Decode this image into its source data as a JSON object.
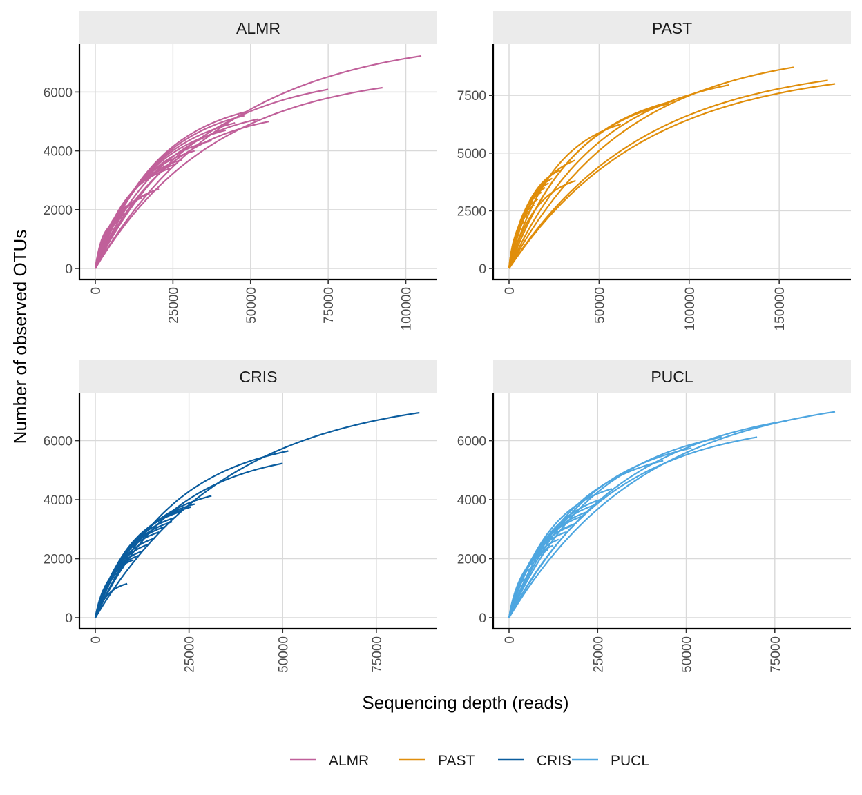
{
  "figure": {
    "xlabel": "Sequencing depth (reads)",
    "ylabel": "Number of observed OTUs"
  },
  "legend": {
    "position": "bottom",
    "entries": [
      {
        "label": "ALMR",
        "color": "#C0609A"
      },
      {
        "label": "PAST",
        "color": "#E08E0B"
      },
      {
        "label": "CRIS",
        "color": "#0A5C9E"
      },
      {
        "label": "PUCL",
        "color": "#4EA6E0"
      }
    ]
  },
  "chart_data": [
    {
      "type": "line",
      "facet": "ALMR",
      "color": "#C0609A",
      "xlim": [
        0,
        105000
      ],
      "ylim": [
        0,
        7300
      ],
      "xticks": [
        0,
        25000,
        50000,
        75000,
        100000
      ],
      "yticks": [
        0,
        2000,
        4000,
        6000
      ],
      "grid": true,
      "series": [
        {
          "depth": 105000,
          "otus": 7230
        },
        {
          "depth": 92500,
          "otus": 6150
        },
        {
          "depth": 75000,
          "otus": 6090
        },
        {
          "depth": 56000,
          "otus": 5000
        },
        {
          "depth": 52500,
          "otus": 5080
        },
        {
          "depth": 49000,
          "otus": 5340
        },
        {
          "depth": 48000,
          "otus": 5200
        },
        {
          "depth": 45000,
          "otus": 4950
        },
        {
          "depth": 42000,
          "otus": 4700
        },
        {
          "depth": 37500,
          "otus": 4350
        },
        {
          "depth": 32000,
          "otus": 4000
        },
        {
          "depth": 28000,
          "otus": 3700
        },
        {
          "depth": 26000,
          "otus": 3550
        },
        {
          "depth": 24000,
          "otus": 3400
        },
        {
          "depth": 20500,
          "otus": 2700
        },
        {
          "depth": 17500,
          "otus": 2550
        },
        {
          "depth": 15000,
          "otus": 2400
        },
        {
          "depth": 12500,
          "otus": 2250
        },
        {
          "depth": 10500,
          "otus": 1900
        },
        {
          "depth": 9000,
          "otus": 1750
        },
        {
          "depth": 7500,
          "otus": 1600
        },
        {
          "depth": 5500,
          "otus": 1500
        },
        {
          "depth": 3500,
          "otus": 1000
        }
      ]
    },
    {
      "type": "line",
      "facet": "PAST",
      "color": "#E08E0B",
      "xlim": [
        0,
        181000
      ],
      "ylim": [
        0,
        9300
      ],
      "xticks": [
        0,
        50000,
        100000,
        150000
      ],
      "yticks": [
        0,
        2500,
        5000,
        7500
      ],
      "grid": true,
      "series": [
        {
          "depth": 158000,
          "otus": 8720
        },
        {
          "depth": 181000,
          "otus": 8000
        },
        {
          "depth": 177000,
          "otus": 8150
        },
        {
          "depth": 122000,
          "otus": 7950
        },
        {
          "depth": 91000,
          "otus": 7250
        },
        {
          "depth": 89000,
          "otus": 7150
        },
        {
          "depth": 62000,
          "otus": 6250
        },
        {
          "depth": 36500,
          "otus": 4680
        },
        {
          "depth": 37000,
          "otus": 3800
        },
        {
          "depth": 28000,
          "otus": 4250
        },
        {
          "depth": 24000,
          "otus": 3900
        },
        {
          "depth": 22000,
          "otus": 3700
        },
        {
          "depth": 20000,
          "otus": 3500
        },
        {
          "depth": 18000,
          "otus": 3300
        },
        {
          "depth": 16000,
          "otus": 3000
        },
        {
          "depth": 14000,
          "otus": 2750
        },
        {
          "depth": 12000,
          "otus": 2500
        },
        {
          "depth": 10000,
          "otus": 2300
        },
        {
          "depth": 8000,
          "otus": 2000
        },
        {
          "depth": 6000,
          "otus": 1700
        },
        {
          "depth": 4000,
          "otus": 1200
        }
      ]
    },
    {
      "type": "line",
      "facet": "CRIS",
      "color": "#0A5C9E",
      "xlim": [
        0,
        87000
      ],
      "ylim": [
        0,
        7300
      ],
      "xticks": [
        0,
        25000,
        50000,
        75000
      ],
      "yticks": [
        0,
        2000,
        4000,
        6000
      ],
      "grid": true,
      "series": [
        {
          "depth": 86500,
          "otus": 6950
        },
        {
          "depth": 51500,
          "otus": 5650
        },
        {
          "depth": 50000,
          "otus": 5230
        },
        {
          "depth": 31000,
          "otus": 4130
        },
        {
          "depth": 26500,
          "otus": 3850
        },
        {
          "depth": 25500,
          "otus": 3750
        },
        {
          "depth": 23000,
          "otus": 3600
        },
        {
          "depth": 21500,
          "otus": 3400
        },
        {
          "depth": 20500,
          "otus": 3250
        },
        {
          "depth": 19000,
          "otus": 3100
        },
        {
          "depth": 17000,
          "otus": 2900
        },
        {
          "depth": 16000,
          "otus": 2700
        },
        {
          "depth": 14500,
          "otus": 2500
        },
        {
          "depth": 12500,
          "otus": 2250
        },
        {
          "depth": 11500,
          "otus": 2100
        },
        {
          "depth": 10000,
          "otus": 1950
        },
        {
          "depth": 8500,
          "otus": 1150
        },
        {
          "depth": 7500,
          "otus": 1700
        },
        {
          "depth": 6500,
          "otus": 1550
        },
        {
          "depth": 5500,
          "otus": 1400
        }
      ]
    },
    {
      "type": "line",
      "facet": "PUCL",
      "color": "#4EA6E0",
      "xlim": [
        0,
        92000
      ],
      "ylim": [
        0,
        7300
      ],
      "xticks": [
        0,
        25000,
        50000,
        75000
      ],
      "yticks": [
        0,
        2000,
        4000,
        6000
      ],
      "grid": true,
      "series": [
        {
          "depth": 92000,
          "otus": 6980
        },
        {
          "depth": 78500,
          "otus": 6680
        },
        {
          "depth": 70000,
          "otus": 6120
        },
        {
          "depth": 60000,
          "otus": 6120
        },
        {
          "depth": 51500,
          "otus": 5750
        },
        {
          "depth": 43500,
          "otus": 5320
        },
        {
          "depth": 29000,
          "otus": 4370
        },
        {
          "depth": 27000,
          "otus": 4050
        },
        {
          "depth": 25000,
          "otus": 3850
        },
        {
          "depth": 22500,
          "otus": 3600
        },
        {
          "depth": 21000,
          "otus": 3450
        },
        {
          "depth": 19000,
          "otus": 3200
        },
        {
          "depth": 17500,
          "otus": 3100
        },
        {
          "depth": 16000,
          "otus": 2900
        },
        {
          "depth": 14000,
          "otus": 2650
        },
        {
          "depth": 12500,
          "otus": 2450
        },
        {
          "depth": 11000,
          "otus": 2300
        },
        {
          "depth": 9500,
          "otus": 2150
        },
        {
          "depth": 8000,
          "otus": 1950
        },
        {
          "depth": 6500,
          "otus": 1700
        },
        {
          "depth": 4500,
          "otus": 1300
        }
      ]
    }
  ]
}
